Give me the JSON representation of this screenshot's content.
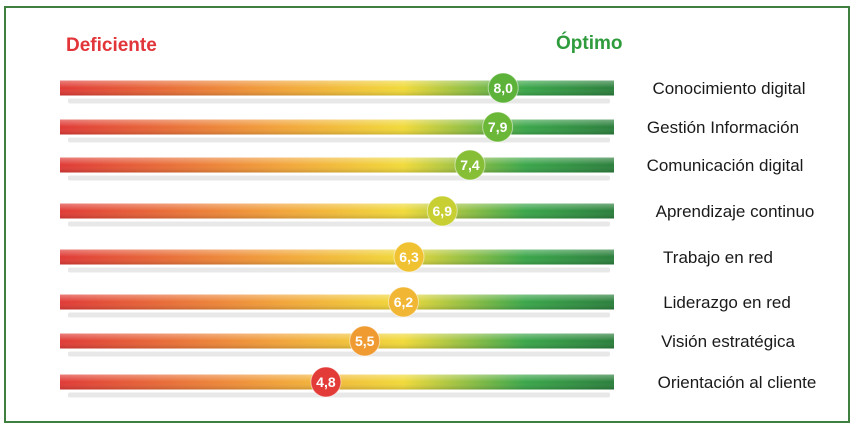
{
  "chart_data": {
    "type": "bar",
    "title": "",
    "xlabel": "",
    "ylabel": "",
    "scale_low_label": "Deficiente",
    "scale_high_label": "Óptimo",
    "xlim": [
      0,
      10
    ],
    "legend": "none",
    "grid": false,
    "categories": [
      "Conocimiento digital",
      "Gestión Información",
      "Comunicación digital",
      "Aprendizaje continuo",
      "Trabajo en red",
      "Liderazgo en red",
      "Visión estratégica",
      "Orientación al cliente"
    ],
    "values": [
      8.0,
      7.9,
      7.4,
      6.9,
      6.3,
      6.2,
      5.5,
      4.8
    ],
    "value_labels": [
      "8,0",
      "7,9",
      "7,4",
      "6,9",
      "6,3",
      "6,2",
      "5,5",
      "4,8"
    ],
    "marker_colors": [
      "#5db33a",
      "#6bb737",
      "#86be35",
      "#c8cf33",
      "#f0c232",
      "#f1b633",
      "#f09a32",
      "#e23b38"
    ],
    "gradient_colors": [
      "#e03a36",
      "#f2a43a",
      "#f1da3a",
      "#3aa64a",
      "#2b7f3c"
    ]
  }
}
